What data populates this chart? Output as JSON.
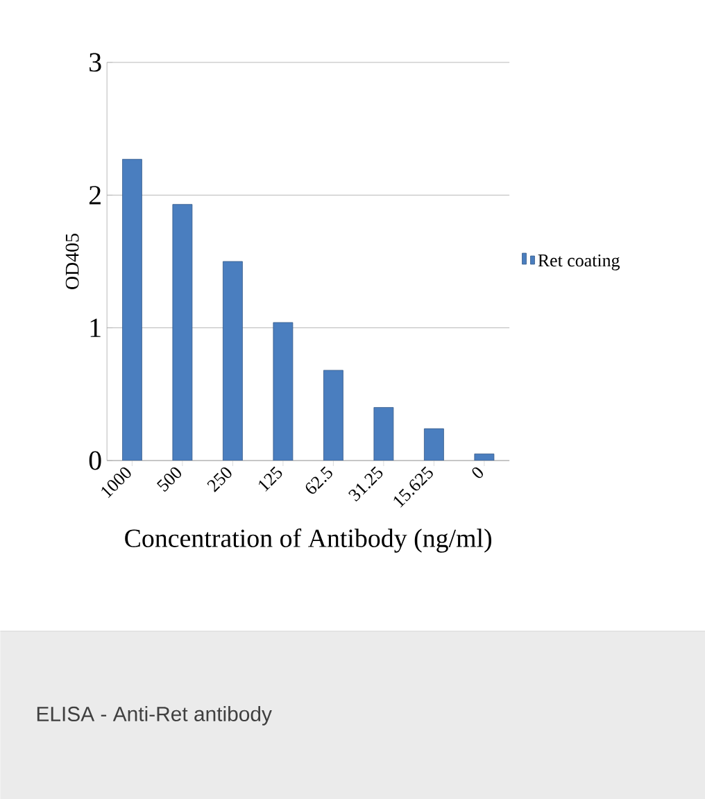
{
  "chart_data": {
    "type": "bar",
    "xlabel": "Concentration of Antibody (ng/ml)",
    "ylabel": "OD405",
    "categories": [
      "1000",
      "500",
      "250",
      "125",
      "62.5",
      "31.25",
      "15.625",
      "0"
    ],
    "series": [
      {
        "name": "Ret coating",
        "color": "#4a7ebf",
        "values": [
          2.27,
          1.93,
          1.5,
          1.04,
          0.68,
          0.4,
          0.24,
          0.05
        ]
      }
    ],
    "ylim": [
      0,
      3
    ],
    "yticks": [
      0,
      1,
      2,
      3
    ],
    "grid": "y",
    "legend": "right",
    "annotations": [
      "ELISA - Anti-Ret antibody"
    ]
  }
}
